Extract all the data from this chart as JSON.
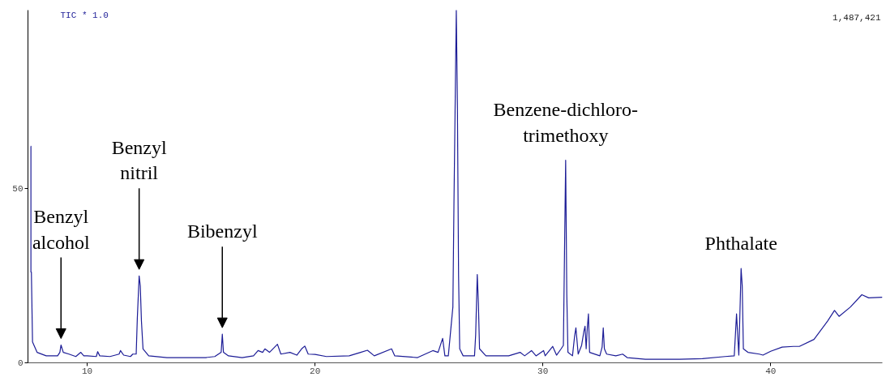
{
  "chart_data": {
    "type": "line",
    "x": [
      7.52,
      7.53,
      7.53,
      7.55,
      7.6,
      7.8,
      8.2,
      8.7,
      8.8,
      8.85,
      8.95,
      9.2,
      9.5,
      9.72,
      9.85,
      10.0,
      10.4,
      10.46,
      10.55,
      11.0,
      11.4,
      11.46,
      11.6,
      11.9,
      12.0,
      12.15,
      12.2,
      12.28,
      12.33,
      12.38,
      12.45,
      12.7,
      13.5,
      14.5,
      15.2,
      15.6,
      15.88,
      15.93,
      15.98,
      16.2,
      16.8,
      17.3,
      17.5,
      17.7,
      17.8,
      18.0,
      18.35,
      18.5,
      18.9,
      19.2,
      19.41,
      19.55,
      19.7,
      20.0,
      20.5,
      21.5,
      22.0,
      22.3,
      22.6,
      23.36,
      23.5,
      24.5,
      25.17,
      25.4,
      25.6,
      25.7,
      25.85,
      26.05,
      26.1,
      26.2,
      26.25,
      26.3,
      26.35,
      26.5,
      27.0,
      27.05,
      27.12,
      27.17,
      27.22,
      27.5,
      28.5,
      29.0,
      29.2,
      29.5,
      29.7,
      30.03,
      30.1,
      30.43,
      30.6,
      30.8,
      30.9,
      30.95,
      31.0,
      31.05,
      31.1,
      31.3,
      31.39,
      31.45,
      31.55,
      31.7,
      31.8,
      31.85,
      31.9,
      31.95,
      32.0,
      32.05,
      32.5,
      32.6,
      32.65,
      32.7,
      32.8,
      33.2,
      33.5,
      33.7,
      34.5,
      36.0,
      37.0,
      38.0,
      38.4,
      38.5,
      38.6,
      38.7,
      38.75,
      38.8,
      39.0,
      39.5,
      39.66,
      40.0,
      40.5,
      41.0,
      41.26,
      41.9,
      42.5,
      42.8,
      43.0,
      43.5,
      44.0,
      44.3,
      44.9
    ],
    "series": [
      {
        "color": "#1c1c96",
        "values": [
          62,
          62,
          26,
          26,
          6,
          3,
          2,
          2,
          3,
          5.1,
          3,
          2.5,
          1.8,
          3,
          2,
          2,
          1.8,
          3.2,
          2,
          1.8,
          2.5,
          3.5,
          2.2,
          1.8,
          2.5,
          2.5,
          12.8,
          24.9,
          22,
          12,
          4,
          2,
          1.5,
          1.5,
          1.5,
          1.8,
          3,
          8.2,
          3,
          2,
          1.5,
          2,
          3.5,
          3,
          4,
          3,
          5.3,
          2.5,
          3,
          2.2,
          4,
          4.8,
          2.5,
          2.4,
          1.8,
          2,
          3,
          3.6,
          2,
          4,
          2,
          1.5,
          3.5,
          3,
          7,
          2,
          2,
          16,
          47,
          101,
          73,
          25,
          4,
          2,
          2,
          8,
          25.3,
          17,
          4,
          2,
          2,
          3,
          2,
          3.5,
          2,
          3.5,
          2,
          4.7,
          2.2,
          4,
          5,
          31.7,
          58,
          19.5,
          3,
          2,
          7.5,
          10,
          2.5,
          5,
          9,
          10.5,
          4,
          10,
          14,
          3,
          2,
          4.5,
          10,
          4,
          2.5,
          2,
          2.5,
          1.5,
          1,
          1,
          1.2,
          1.8,
          2,
          14,
          2.2,
          27,
          22,
          4,
          3,
          2.5,
          2.2,
          3.3,
          4.5,
          4.7,
          4.7,
          6.7,
          12,
          15,
          13.3,
          16,
          19.5,
          18.6,
          18.8
        ]
      }
    ],
    "xlim": [
      7.4,
      44.9
    ],
    "ylim": [
      0,
      101
    ],
    "xticks": [
      10,
      20,
      30,
      40
    ],
    "yticks": [
      0,
      50
    ],
    "grid": false,
    "marker": "none",
    "line_style": "solid",
    "annotations": [
      "TIC * 1.0",
      "1,487,421",
      {
        "text": "Benzyl\nalcohol",
        "x": 8.85,
        "y": 5.1
      },
      {
        "text": "Benzyl\nnitril",
        "x": 12.28,
        "y": 24.9
      },
      {
        "text": "Bibenzyl",
        "x": 15.93,
        "y": 8.2
      },
      {
        "text": "Benzene-dichloro-\ntrimethoxy",
        "x": 31.0,
        "y": 58
      },
      {
        "text": "Phthalate",
        "x": 38.7,
        "y": 27
      }
    ]
  }
}
